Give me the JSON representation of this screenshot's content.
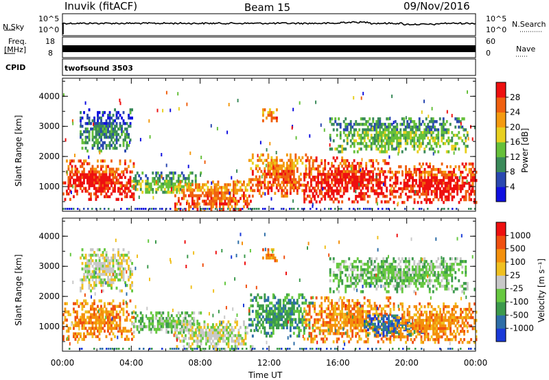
{
  "header": {
    "station": "Inuvik (fitACF)",
    "beam": "Beam 15",
    "date": "09/Nov/2016"
  },
  "top_panels": {
    "nsky_label": "N.Sky",
    "nsearch_label": "N.Search",
    "noise_ticks": [
      "10^5",
      "10^0"
    ],
    "freq_label_1": "Freq.",
    "freq_label_2": "[MHz]",
    "freq_ticks": [
      "18",
      "8"
    ],
    "nave_label": "Nave",
    "nave_ticks": [
      "60",
      "0"
    ],
    "cpid_label": "CPID",
    "cpid_value": "twofsound 3503"
  },
  "chart_data": [
    {
      "type": "heatmap",
      "panel": "power",
      "ylabel": "Slant Range [km]",
      "xlabel": "Time UT",
      "x_ticks": [
        "00:00",
        "04:00",
        "08:00",
        "12:00",
        "16:00",
        "20:00",
        "00:00"
      ],
      "y_ticks": [
        1000,
        2000,
        3000,
        4000
      ],
      "xlim_hours": [
        0,
        24
      ],
      "ylim_km": [
        180,
        4600
      ],
      "colorbar": {
        "label": "Power [dB]",
        "ticks": [
          "4",
          "8",
          "12",
          "16",
          "20",
          "24",
          "28"
        ],
        "colors": [
          "#1010e0",
          "#2a48b0",
          "#3a8a5a",
          "#66c03a",
          "#e8d020",
          "#f49a10",
          "#f06010",
          "#ee1010"
        ]
      },
      "echo_regions": [
        {
          "t0": 0.0,
          "t1": 4.1,
          "r0": 600,
          "r1": 1900,
          "level": 6
        },
        {
          "t0": 1.0,
          "t1": 4.0,
          "r0": 2200,
          "r1": 3600,
          "level": 1
        },
        {
          "t0": 4.0,
          "t1": 8.0,
          "r0": 800,
          "r1": 1500,
          "level": 2
        },
        {
          "t0": 6.5,
          "t1": 11.0,
          "r0": 200,
          "r1": 1200,
          "level": 5
        },
        {
          "t0": 10.8,
          "t1": 14.5,
          "r0": 700,
          "r1": 2100,
          "level": 5
        },
        {
          "t0": 11.6,
          "t1": 12.4,
          "r0": 3200,
          "r1": 3600,
          "level": 5
        },
        {
          "t0": 14.0,
          "t1": 19.0,
          "r0": 500,
          "r1": 2000,
          "level": 6
        },
        {
          "t0": 19.0,
          "t1": 24.0,
          "r0": 500,
          "r1": 1800,
          "level": 6
        },
        {
          "t0": 15.5,
          "t1": 23.5,
          "r0": 2200,
          "r1": 3300,
          "level": 2
        }
      ]
    },
    {
      "type": "heatmap",
      "panel": "velocity",
      "ylabel": "Slant Range [km]",
      "xlabel": "Time UT",
      "x_ticks": [
        "00:00",
        "04:00",
        "08:00",
        "12:00",
        "16:00",
        "20:00",
        "00:00"
      ],
      "y_ticks": [
        1000,
        2000,
        3000,
        4000
      ],
      "xlim_hours": [
        0,
        24
      ],
      "ylim_km": [
        180,
        4600
      ],
      "colorbar": {
        "label": "Velocity [m s⁻¹]",
        "ticks": [
          "1000",
          "500",
          "100",
          "25",
          "-25",
          "-100",
          "-500",
          "-1000"
        ],
        "colors": [
          "#1a3ad8",
          "#2e6ea8",
          "#3c9a4c",
          "#66c840",
          "#c8c8c8",
          "#f0c020",
          "#f4900c",
          "#f05010",
          "#ee1010"
        ]
      },
      "echo_regions": [
        {
          "t0": 0.0,
          "t1": 4.1,
          "r0": 600,
          "r1": 1900,
          "level": 6
        },
        {
          "t0": 1.0,
          "t1": 4.0,
          "r0": 2200,
          "r1": 3600,
          "level": 4
        },
        {
          "t0": 4.0,
          "t1": 8.0,
          "r0": 800,
          "r1": 1500,
          "level": 3
        },
        {
          "t0": 6.5,
          "t1": 11.0,
          "r0": 200,
          "r1": 1200,
          "level": 4
        },
        {
          "t0": 10.8,
          "t1": 14.5,
          "r0": 700,
          "r1": 2100,
          "level": 2
        },
        {
          "t0": 11.6,
          "t1": 12.4,
          "r0": 3200,
          "r1": 3600,
          "level": 6
        },
        {
          "t0": 14.0,
          "t1": 19.0,
          "r0": 500,
          "r1": 2000,
          "level": 6
        },
        {
          "t0": 17.5,
          "t1": 21.0,
          "r0": 700,
          "r1": 1400,
          "level": 1
        },
        {
          "t0": 19.0,
          "t1": 24.0,
          "r0": 500,
          "r1": 1800,
          "level": 6
        },
        {
          "t0": 15.5,
          "t1": 23.5,
          "r0": 2200,
          "r1": 3300,
          "level": 3
        }
      ]
    }
  ]
}
